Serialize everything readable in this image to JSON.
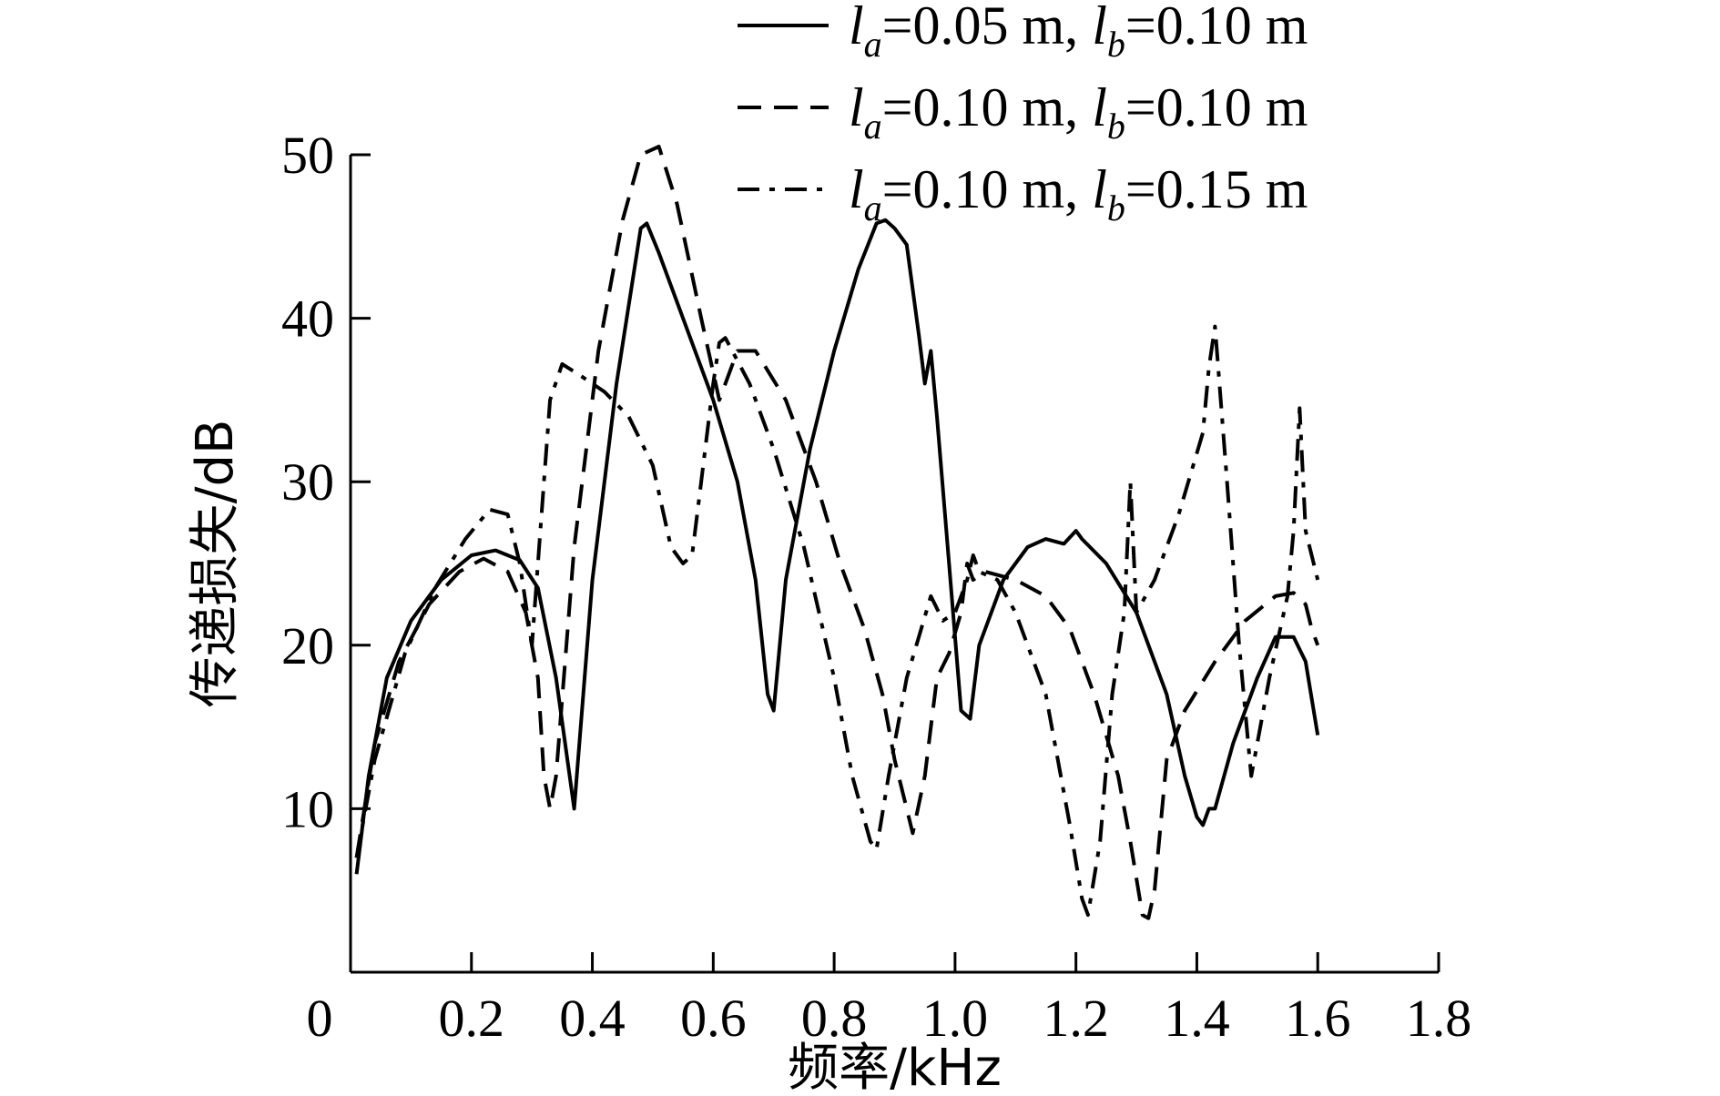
{
  "chart_data": {
    "type": "line",
    "xlabel": "频率/kHz",
    "ylabel": "传递损失/dB",
    "xlim": [
      0,
      1.8
    ],
    "ylim": [
      0,
      50
    ],
    "xticks": [
      "0",
      "0.2",
      "0.4",
      "0.6",
      "0.8",
      "1.0",
      "1.2",
      "1.4",
      "1.6",
      "1.8"
    ],
    "yticks": [
      "10",
      "20",
      "30",
      "40",
      "50"
    ],
    "grid": false,
    "legend_position": "top-right",
    "series": [
      {
        "name": "la=0.05 m, lb=0.10 m",
        "legend": {
          "la": "0.05 m",
          "lb": "0.10 m"
        },
        "style": "solid",
        "x": [
          0.01,
          0.03,
          0.06,
          0.1,
          0.15,
          0.2,
          0.24,
          0.28,
          0.31,
          0.34,
          0.37,
          0.4,
          0.44,
          0.48,
          0.49,
          0.51,
          0.55,
          0.6,
          0.64,
          0.67,
          0.69,
          0.7,
          0.72,
          0.76,
          0.8,
          0.84,
          0.87,
          0.885,
          0.9,
          0.92,
          0.94,
          0.95,
          0.96,
          0.97,
          0.99,
          1.01,
          1.025,
          1.04,
          1.05,
          1.08,
          1.12,
          1.15,
          1.18,
          1.2,
          1.21,
          1.25,
          1.3,
          1.35,
          1.38,
          1.4,
          1.41,
          1.42,
          1.43,
          1.46,
          1.5,
          1.53,
          1.56,
          1.58,
          1.6
        ],
        "y": [
          6,
          12,
          18,
          21.5,
          24,
          25.5,
          25.8,
          25.2,
          23.5,
          18,
          10,
          24,
          36,
          45.5,
          45.8,
          44,
          40,
          35,
          30,
          24,
          17,
          16,
          24,
          32,
          38,
          43,
          45.8,
          46,
          45.5,
          44.5,
          39,
          36,
          38,
          34,
          25,
          16,
          15.5,
          20,
          21,
          24,
          26,
          26.5,
          26.2,
          27,
          26.5,
          25,
          22,
          17,
          12,
          9.5,
          9,
          10,
          10,
          14,
          18,
          20.5,
          20.5,
          19,
          14.5
        ]
      },
      {
        "name": "la=0.10 m, lb=0.10 m",
        "legend": {
          "la": "0.10 m",
          "lb": "0.10 m"
        },
        "style": "dashed",
        "x": [
          0.01,
          0.04,
          0.08,
          0.13,
          0.18,
          0.22,
          0.26,
          0.29,
          0.31,
          0.32,
          0.33,
          0.34,
          0.37,
          0.41,
          0.45,
          0.48,
          0.51,
          0.54,
          0.58,
          0.61,
          0.64,
          0.67,
          0.72,
          0.77,
          0.81,
          0.85,
          0.88,
          0.9,
          0.92,
          0.93,
          0.95,
          0.97,
          0.99,
          1.01,
          1.02,
          1.03,
          1.05,
          1.1,
          1.15,
          1.19,
          1.23,
          1.27,
          1.29,
          1.31,
          1.32,
          1.33,
          1.35,
          1.38,
          1.43,
          1.48,
          1.53,
          1.56,
          1.58,
          1.59,
          1.6
        ],
        "y": [
          7,
          14,
          19,
          22.5,
          24.5,
          25.3,
          24.5,
          22,
          18,
          12,
          10,
          12,
          26,
          38,
          46,
          50,
          50.5,
          47,
          40,
          35,
          38,
          38,
          35,
          30,
          25,
          21,
          17,
          13,
          10,
          8.5,
          12,
          18,
          19.5,
          22,
          25,
          24,
          24.5,
          24,
          23,
          21,
          17,
          12,
          8,
          3.5,
          3.3,
          5,
          13,
          16,
          19,
          21.5,
          23,
          23.2,
          22.5,
          21,
          20
        ]
      },
      {
        "name": "la=0.10 m, lb=0.15 m",
        "legend": {
          "la": "0.10 m",
          "lb": "0.15 m"
        },
        "style": "dashdot",
        "x": [
          0.01,
          0.04,
          0.09,
          0.14,
          0.19,
          0.23,
          0.26,
          0.28,
          0.3,
          0.31,
          0.32,
          0.33,
          0.35,
          0.38,
          0.42,
          0.46,
          0.5,
          0.53,
          0.55,
          0.565,
          0.58,
          0.6,
          0.61,
          0.62,
          0.66,
          0.7,
          0.75,
          0.8,
          0.83,
          0.86,
          0.87,
          0.89,
          0.92,
          0.94,
          0.96,
          0.98,
          1.0,
          1.02,
          1.03,
          1.04,
          1.07,
          1.1,
          1.15,
          1.19,
          1.21,
          1.22,
          1.24,
          1.26,
          1.28,
          1.29,
          1.3,
          1.33,
          1.37,
          1.41,
          1.42,
          1.43,
          1.45,
          1.47,
          1.49,
          1.52,
          1.55,
          1.56,
          1.57,
          1.58,
          1.6
        ],
        "y": [
          7,
          13,
          19.5,
          23.5,
          26.5,
          28.3,
          28,
          25,
          20,
          25,
          30,
          35,
          37.2,
          36.5,
          35.5,
          34,
          31,
          26,
          25,
          25.5,
          30,
          36,
          38.5,
          38.8,
          36,
          32,
          26,
          18,
          12,
          8,
          7.5,
          12,
          18,
          20.5,
          23,
          21.5,
          22,
          24,
          25.5,
          24.5,
          24,
          22,
          17,
          9,
          4.5,
          3.5,
          8,
          17,
          22,
          30,
          22,
          24,
          28,
          33,
          37,
          39.5,
          30,
          20,
          12,
          18,
          23,
          27,
          34.5,
          27,
          24
        ]
      }
    ]
  }
}
